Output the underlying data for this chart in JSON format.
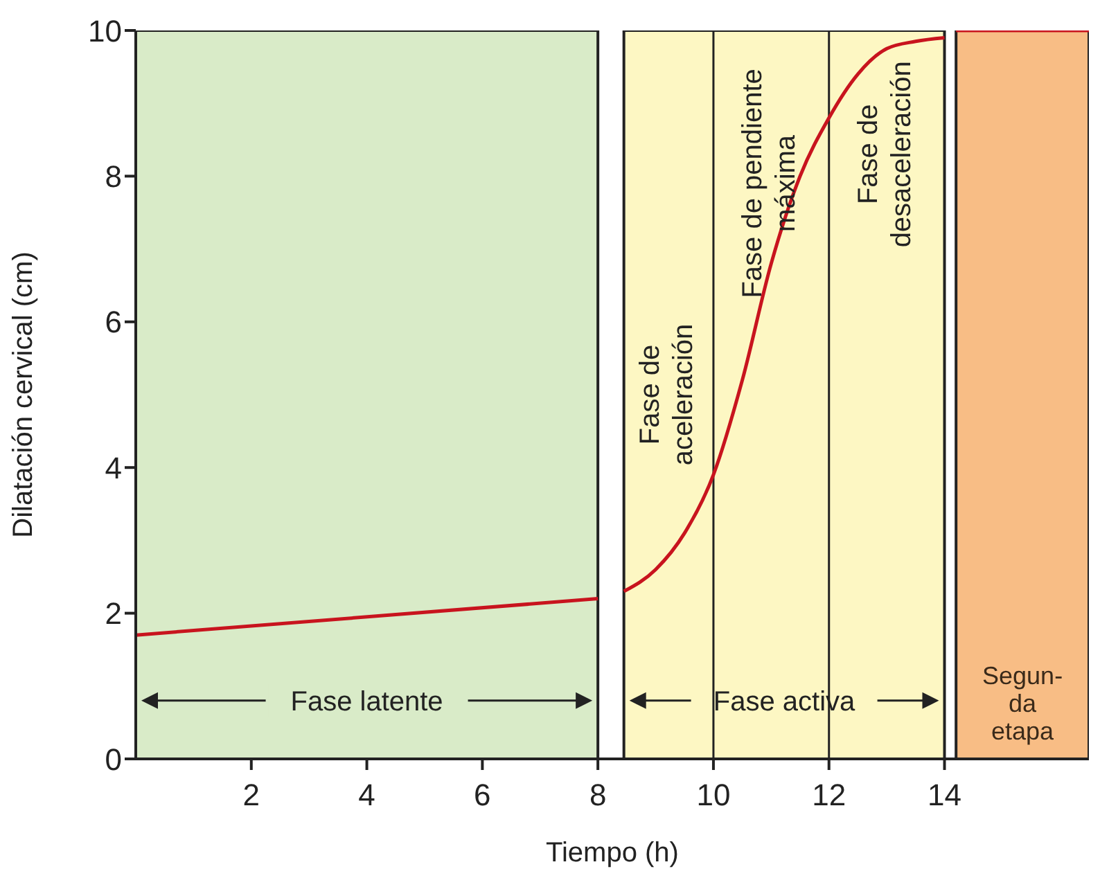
{
  "chart_data": {
    "type": "line",
    "xlabel": "Tiempo (h)",
    "ylabel": "Dilatación cervical (cm)",
    "xlim": [
      0,
      16.5
    ],
    "xticks": [
      2,
      4,
      6,
      8,
      10,
      12,
      14
    ],
    "ylim": [
      0,
      10
    ],
    "yticks": [
      0,
      2,
      4,
      6,
      8,
      10
    ],
    "marker": "none",
    "line_style": "solid",
    "series": [
      {
        "color": "#c8141e",
        "x": [
          0,
          8
        ],
        "values": [
          1.7,
          2.2
        ]
      },
      {
        "color": "#c8141e",
        "x": [
          8.45,
          9,
          9.5,
          10,
          10.5,
          11,
          11.5,
          12,
          12.5,
          13,
          13.5,
          14
        ],
        "values": [
          2.3,
          2.6,
          3.1,
          3.9,
          5.2,
          6.8,
          8,
          8.8,
          9.4,
          9.75,
          9.85,
          9.9
        ]
      },
      {
        "color": "#c8141e",
        "x": [
          14.2,
          16.5
        ],
        "values": [
          10,
          10
        ]
      }
    ],
    "bands": [
      {
        "axis": "x",
        "from": 0,
        "to": 8,
        "label": "Fase latente",
        "color": "#d9ebc8"
      },
      {
        "axis": "x",
        "from": 8.45,
        "to": 14,
        "label": "Fase activa",
        "color": "#fdf7c3"
      },
      {
        "axis": "x",
        "from": 14.2,
        "to": 16.5,
        "label": "Segun-\nda\netapa",
        "color": "#f8bd85"
      }
    ],
    "ref_lines": [
      {
        "axis": "x",
        "value": 10,
        "color": "#222222"
      },
      {
        "axis": "x",
        "value": 12,
        "color": "#222222"
      }
    ],
    "annotations": [
      "Fase de\naceleración",
      "Fase de pendiente\nmáxima",
      "Fase de\ndesaceleración"
    ]
  }
}
